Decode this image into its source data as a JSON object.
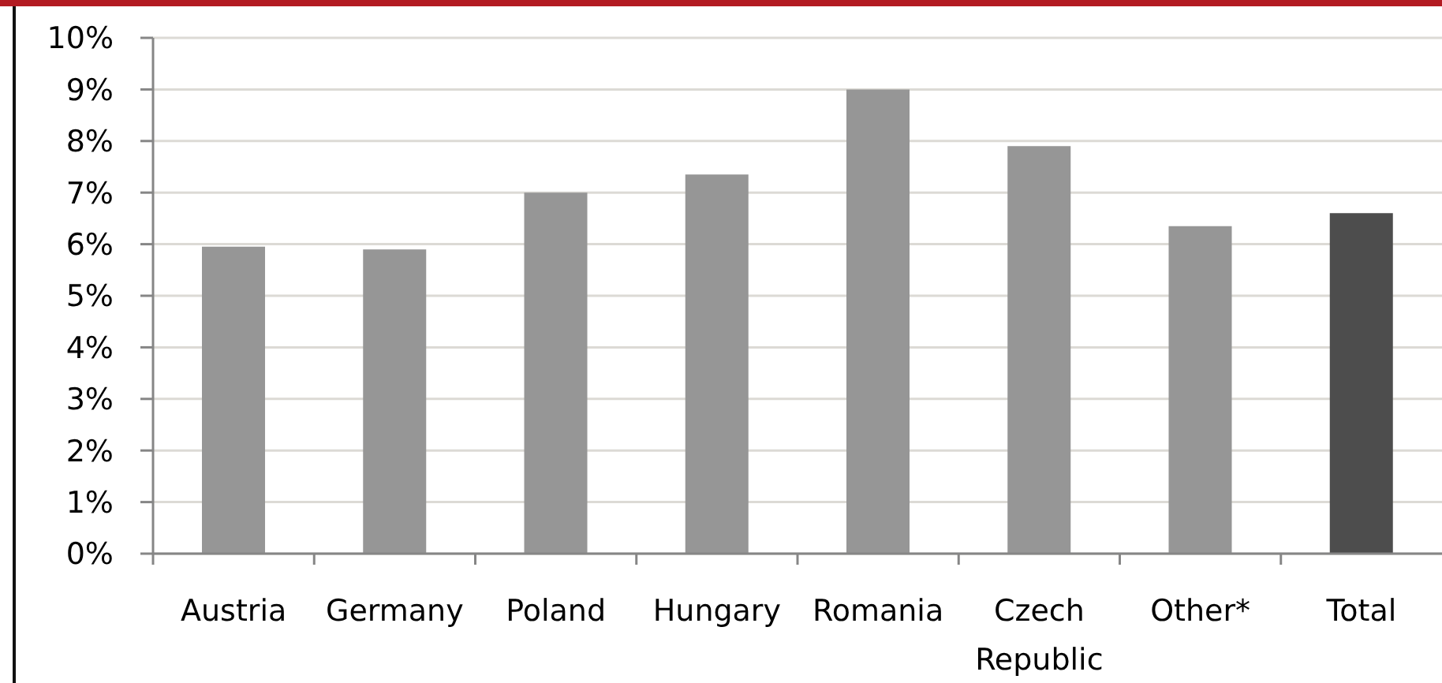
{
  "chart_data": {
    "type": "bar",
    "categories": [
      "Austria",
      "Germany",
      "Poland",
      "Hungary",
      "Romania",
      "Czech Republic",
      "Other*",
      "Total"
    ],
    "values": [
      5.95,
      5.9,
      7.0,
      7.35,
      9.0,
      7.9,
      6.35,
      6.6
    ],
    "colors": [
      "#969696",
      "#969696",
      "#969696",
      "#969696",
      "#969696",
      "#969696",
      "#969696",
      "#4d4d4d"
    ],
    "ylim": [
      0,
      10
    ],
    "yticks": [
      {
        "value": 0,
        "label": "0%"
      },
      {
        "value": 1,
        "label": "1%"
      },
      {
        "value": 2,
        "label": "2%"
      },
      {
        "value": 3,
        "label": "3%"
      },
      {
        "value": 4,
        "label": "4%"
      },
      {
        "value": 5,
        "label": "5%"
      },
      {
        "value": 6,
        "label": "6%"
      },
      {
        "value": 7,
        "label": "7%"
      },
      {
        "value": 8,
        "label": "8%"
      },
      {
        "value": 9,
        "label": "9%"
      },
      {
        "value": 10,
        "label": "10%"
      }
    ],
    "grid": "y"
  }
}
